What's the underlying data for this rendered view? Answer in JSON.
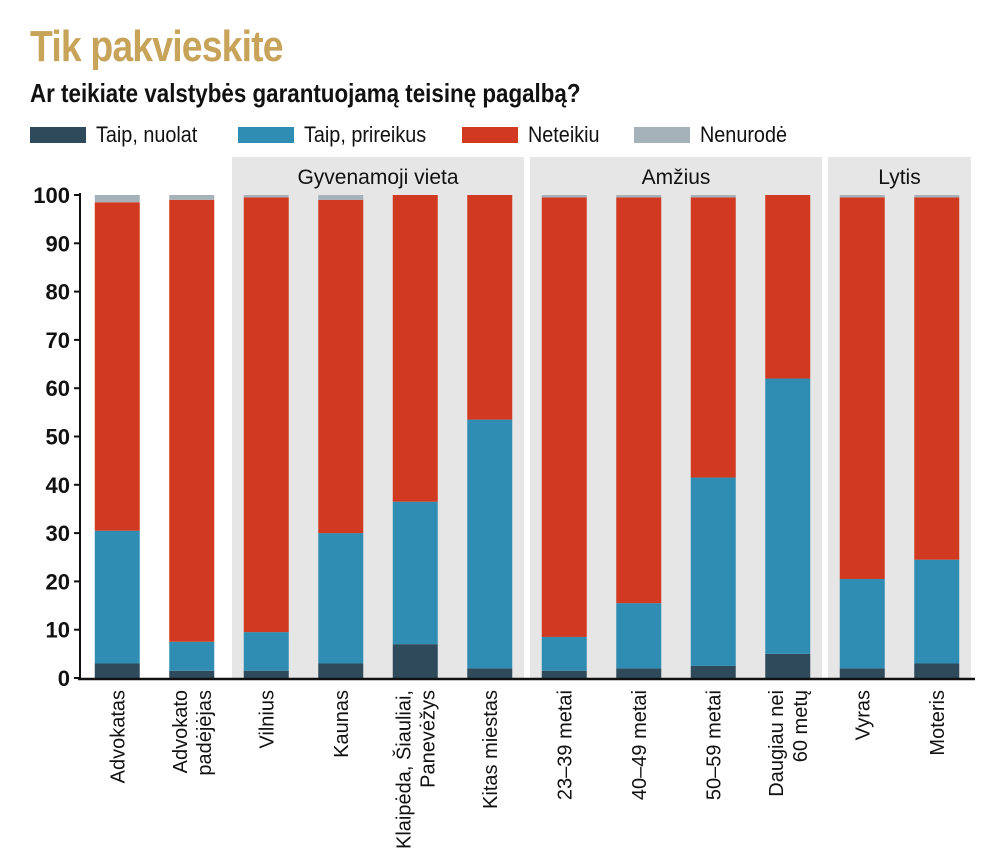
{
  "colors": {
    "title": "#c8a35a",
    "taip_nuolat": "#2e4a5b",
    "taip_prireikus": "#2f8db3",
    "neteikiu": "#d13a21",
    "nenurode": "#a5b2ba",
    "group_band": "#e6e6e6"
  },
  "header": {
    "title": "Tik pakvieskite",
    "subtitle": "Ar teikiate valstybės garantuojamą teisinę pagalbą?"
  },
  "legend": [
    {
      "label": "Taip, nuolat",
      "color": "#2e4a5b"
    },
    {
      "label": "Taip, prireikus",
      "color": "#2f8db3"
    },
    {
      "label": "Neteikiu",
      "color": "#d13a21"
    },
    {
      "label": "Nenurodė",
      "color": "#a5b2ba"
    }
  ],
  "chart_data": {
    "type": "bar",
    "stacked": true,
    "ylim": [
      0,
      100
    ],
    "yticks": [
      0,
      10,
      20,
      30,
      40,
      50,
      60,
      70,
      80,
      90,
      100
    ],
    "grid": false,
    "groups": [
      {
        "label": "Gyvenamoji vieta",
        "from": 2,
        "to": 5
      },
      {
        "label": "Amžius",
        "from": 6,
        "to": 9
      },
      {
        "label": "Lytis",
        "from": 10,
        "to": 11
      }
    ],
    "categories": [
      [
        "Advokatas"
      ],
      [
        "Advokato",
        "padėjėjas"
      ],
      [
        "Vilnius"
      ],
      [
        "Kaunas"
      ],
      [
        "Klaipėda, Šiauliai,",
        "Panevėžys"
      ],
      [
        "Kitas miestas"
      ],
      [
        "23–39 metai"
      ],
      [
        "40–49 metai"
      ],
      [
        "50–59 metai"
      ],
      [
        "Daugiau nei",
        "60 metų"
      ],
      [
        "Vyras"
      ],
      [
        "Moteris"
      ]
    ],
    "series": [
      {
        "name": "Taip, nuolat",
        "values": [
          3,
          1.5,
          1.5,
          3,
          7,
          2,
          1.5,
          2,
          2.5,
          5,
          2,
          3
        ]
      },
      {
        "name": "Taip, prireikus",
        "values": [
          27.5,
          6,
          8,
          27,
          29.5,
          51.5,
          7,
          13.5,
          39,
          57,
          18.5,
          21.5
        ]
      },
      {
        "name": "Neteikiu",
        "values": [
          68,
          91.5,
          90,
          69,
          63.5,
          46.5,
          91,
          84,
          58,
          38,
          79,
          75
        ]
      },
      {
        "name": "Nenurodė",
        "values": [
          1.5,
          1,
          0.5,
          1,
          0,
          0,
          0.5,
          0.5,
          0.5,
          0,
          0.5,
          0.5
        ]
      }
    ]
  }
}
